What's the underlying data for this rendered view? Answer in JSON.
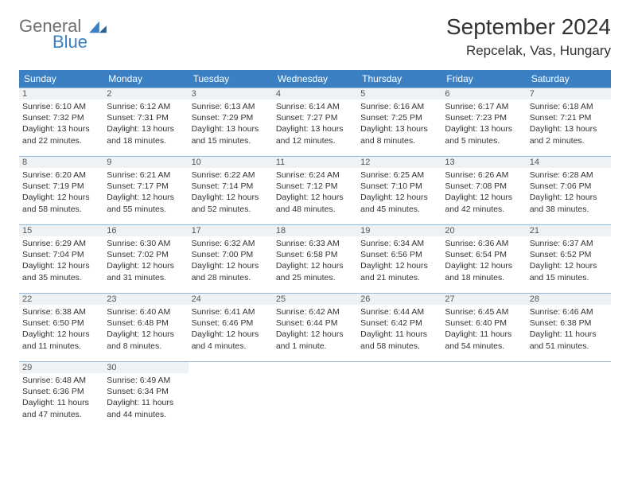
{
  "brand": {
    "word1": "General",
    "word2": "Blue",
    "mark_color": "#3a80c3",
    "text_gray": "#6e6e6e"
  },
  "title": "September 2024",
  "location": "Repcelak, Vas, Hungary",
  "colors": {
    "header_bg": "#3a80c3",
    "header_fg": "#ffffff",
    "rule": "#94b7d6",
    "daynum_bg": "#eef2f5",
    "page_bg": "#ffffff"
  },
  "dayNames": [
    "Sunday",
    "Monday",
    "Tuesday",
    "Wednesday",
    "Thursday",
    "Friday",
    "Saturday"
  ],
  "weeks": [
    [
      {
        "n": "1",
        "sr": "Sunrise: 6:10 AM",
        "ss": "Sunset: 7:32 PM",
        "dl": "Daylight: 13 hours and 22 minutes."
      },
      {
        "n": "2",
        "sr": "Sunrise: 6:12 AM",
        "ss": "Sunset: 7:31 PM",
        "dl": "Daylight: 13 hours and 18 minutes."
      },
      {
        "n": "3",
        "sr": "Sunrise: 6:13 AM",
        "ss": "Sunset: 7:29 PM",
        "dl": "Daylight: 13 hours and 15 minutes."
      },
      {
        "n": "4",
        "sr": "Sunrise: 6:14 AM",
        "ss": "Sunset: 7:27 PM",
        "dl": "Daylight: 13 hours and 12 minutes."
      },
      {
        "n": "5",
        "sr": "Sunrise: 6:16 AM",
        "ss": "Sunset: 7:25 PM",
        "dl": "Daylight: 13 hours and 8 minutes."
      },
      {
        "n": "6",
        "sr": "Sunrise: 6:17 AM",
        "ss": "Sunset: 7:23 PM",
        "dl": "Daylight: 13 hours and 5 minutes."
      },
      {
        "n": "7",
        "sr": "Sunrise: 6:18 AM",
        "ss": "Sunset: 7:21 PM",
        "dl": "Daylight: 13 hours and 2 minutes."
      }
    ],
    [
      {
        "n": "8",
        "sr": "Sunrise: 6:20 AM",
        "ss": "Sunset: 7:19 PM",
        "dl": "Daylight: 12 hours and 58 minutes."
      },
      {
        "n": "9",
        "sr": "Sunrise: 6:21 AM",
        "ss": "Sunset: 7:17 PM",
        "dl": "Daylight: 12 hours and 55 minutes."
      },
      {
        "n": "10",
        "sr": "Sunrise: 6:22 AM",
        "ss": "Sunset: 7:14 PM",
        "dl": "Daylight: 12 hours and 52 minutes."
      },
      {
        "n": "11",
        "sr": "Sunrise: 6:24 AM",
        "ss": "Sunset: 7:12 PM",
        "dl": "Daylight: 12 hours and 48 minutes."
      },
      {
        "n": "12",
        "sr": "Sunrise: 6:25 AM",
        "ss": "Sunset: 7:10 PM",
        "dl": "Daylight: 12 hours and 45 minutes."
      },
      {
        "n": "13",
        "sr": "Sunrise: 6:26 AM",
        "ss": "Sunset: 7:08 PM",
        "dl": "Daylight: 12 hours and 42 minutes."
      },
      {
        "n": "14",
        "sr": "Sunrise: 6:28 AM",
        "ss": "Sunset: 7:06 PM",
        "dl": "Daylight: 12 hours and 38 minutes."
      }
    ],
    [
      {
        "n": "15",
        "sr": "Sunrise: 6:29 AM",
        "ss": "Sunset: 7:04 PM",
        "dl": "Daylight: 12 hours and 35 minutes."
      },
      {
        "n": "16",
        "sr": "Sunrise: 6:30 AM",
        "ss": "Sunset: 7:02 PM",
        "dl": "Daylight: 12 hours and 31 minutes."
      },
      {
        "n": "17",
        "sr": "Sunrise: 6:32 AM",
        "ss": "Sunset: 7:00 PM",
        "dl": "Daylight: 12 hours and 28 minutes."
      },
      {
        "n": "18",
        "sr": "Sunrise: 6:33 AM",
        "ss": "Sunset: 6:58 PM",
        "dl": "Daylight: 12 hours and 25 minutes."
      },
      {
        "n": "19",
        "sr": "Sunrise: 6:34 AM",
        "ss": "Sunset: 6:56 PM",
        "dl": "Daylight: 12 hours and 21 minutes."
      },
      {
        "n": "20",
        "sr": "Sunrise: 6:36 AM",
        "ss": "Sunset: 6:54 PM",
        "dl": "Daylight: 12 hours and 18 minutes."
      },
      {
        "n": "21",
        "sr": "Sunrise: 6:37 AM",
        "ss": "Sunset: 6:52 PM",
        "dl": "Daylight: 12 hours and 15 minutes."
      }
    ],
    [
      {
        "n": "22",
        "sr": "Sunrise: 6:38 AM",
        "ss": "Sunset: 6:50 PM",
        "dl": "Daylight: 12 hours and 11 minutes."
      },
      {
        "n": "23",
        "sr": "Sunrise: 6:40 AM",
        "ss": "Sunset: 6:48 PM",
        "dl": "Daylight: 12 hours and 8 minutes."
      },
      {
        "n": "24",
        "sr": "Sunrise: 6:41 AM",
        "ss": "Sunset: 6:46 PM",
        "dl": "Daylight: 12 hours and 4 minutes."
      },
      {
        "n": "25",
        "sr": "Sunrise: 6:42 AM",
        "ss": "Sunset: 6:44 PM",
        "dl": "Daylight: 12 hours and 1 minute."
      },
      {
        "n": "26",
        "sr": "Sunrise: 6:44 AM",
        "ss": "Sunset: 6:42 PM",
        "dl": "Daylight: 11 hours and 58 minutes."
      },
      {
        "n": "27",
        "sr": "Sunrise: 6:45 AM",
        "ss": "Sunset: 6:40 PM",
        "dl": "Daylight: 11 hours and 54 minutes."
      },
      {
        "n": "28",
        "sr": "Sunrise: 6:46 AM",
        "ss": "Sunset: 6:38 PM",
        "dl": "Daylight: 11 hours and 51 minutes."
      }
    ],
    [
      {
        "n": "29",
        "sr": "Sunrise: 6:48 AM",
        "ss": "Sunset: 6:36 PM",
        "dl": "Daylight: 11 hours and 47 minutes."
      },
      {
        "n": "30",
        "sr": "Sunrise: 6:49 AM",
        "ss": "Sunset: 6:34 PM",
        "dl": "Daylight: 11 hours and 44 minutes."
      },
      null,
      null,
      null,
      null,
      null
    ]
  ]
}
